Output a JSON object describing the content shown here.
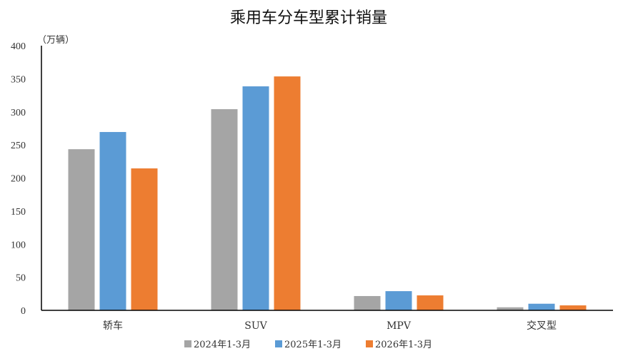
{
  "chart_data": {
    "type": "bar",
    "title": "乘用车分车型累计销量",
    "ylabel": "（万辆）",
    "xlabel": "",
    "categories": [
      "轿车",
      "SUV",
      "MPV",
      "交叉型"
    ],
    "series": [
      {
        "name": "2024年1-3月",
        "color": "#a5a5a5",
        "values": [
          243.5,
          304,
          21.6,
          4.6
        ]
      },
      {
        "name": "2025年1-3月",
        "color": "#5b9bd5",
        "values": [
          269.5,
          338.5,
          29,
          10
        ]
      },
      {
        "name": "2026年1-3月",
        "color": "#ed7d31",
        "values": [
          214.5,
          353.5,
          22.6,
          7.5
        ]
      }
    ],
    "ylim": [
      0,
      400
    ],
    "yticks": [
      "0",
      "50",
      "100",
      "150",
      "200",
      "250",
      "300",
      "350",
      "400"
    ],
    "grid": false,
    "legend": "bottom"
  }
}
